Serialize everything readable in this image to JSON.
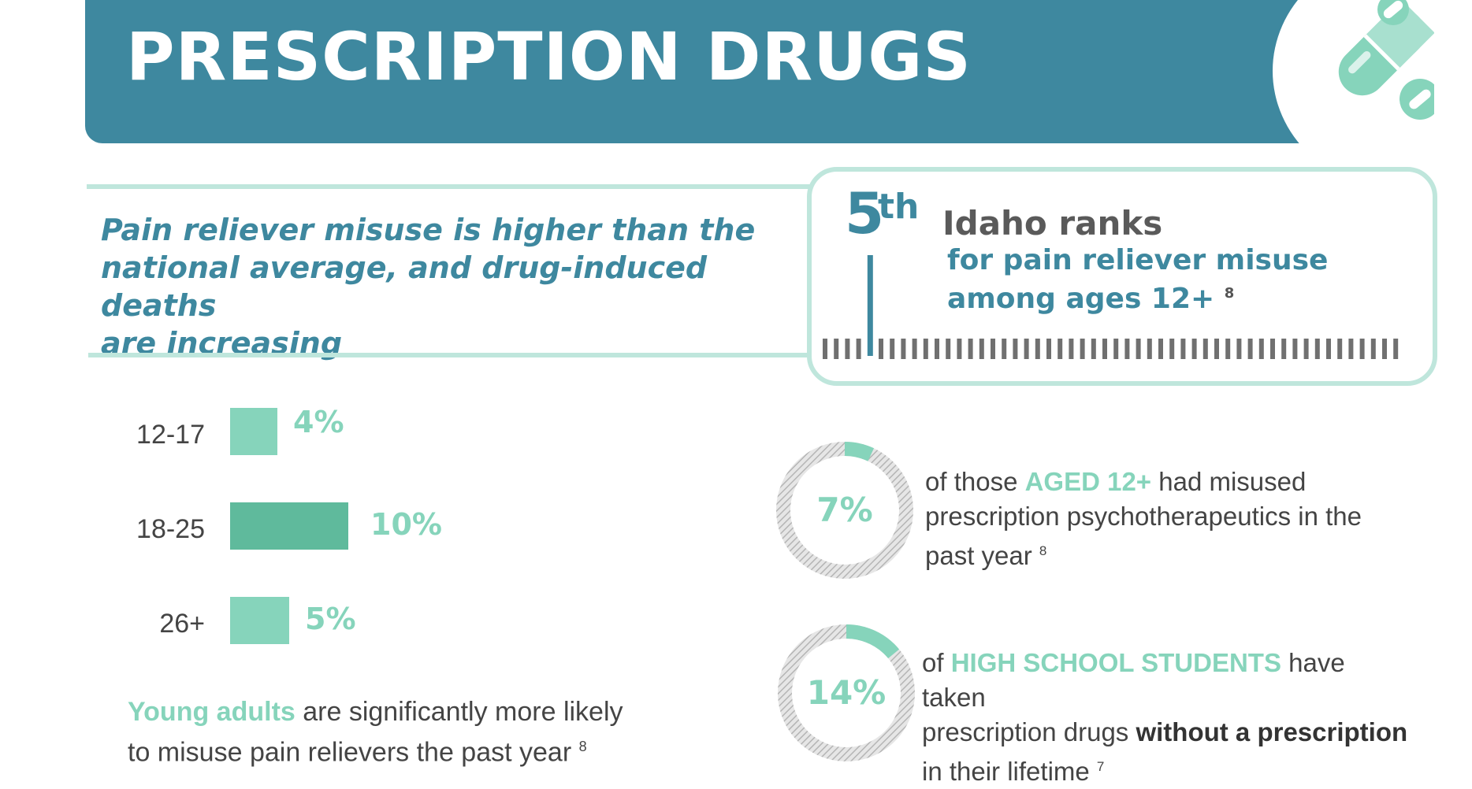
{
  "header": {
    "title": "PRESCRIPTION DRUGS",
    "icon": "pill-capsule-icon",
    "banner_color": "#3e889f",
    "icon_color": "#86d4bb"
  },
  "headline": {
    "lines": [
      "Pain reliever misuse is higher than the",
      "national average, and drug-induced deaths",
      "are increasing"
    ]
  },
  "rank_card": {
    "rank": "5",
    "suffix": "th",
    "title": "Idaho ranks",
    "desc_line1": "for pain reliever misuse",
    "desc_line2": "among ages 12+",
    "footnote": "8"
  },
  "chart_data": {
    "type": "bar",
    "orientation": "horizontal",
    "categories": [
      "12-17",
      "18-25",
      "26+"
    ],
    "values": [
      4,
      10,
      5
    ],
    "labels": [
      "4%",
      "10%",
      "5%"
    ],
    "highlight": "18-25",
    "colors": {
      "bar": "#86d4bb",
      "highlight": "#5fba9c"
    }
  },
  "bar_footnote": {
    "highlight": "Young adults",
    "text_line1": " are significantly more likely",
    "text_line2": "to misuse pain relievers the past year",
    "footnote": "8"
  },
  "stats": [
    {
      "value": 7,
      "label": "7%",
      "pre": "of those ",
      "highlight": "AGED 12+",
      "post1": " had misused",
      "line2": "prescription psychotherapeutics in the",
      "line3": "past year",
      "footnote": "8"
    },
    {
      "value": 14,
      "label": "14%",
      "pre": "of ",
      "highlight": "HIGH SCHOOL STUDENTS",
      "post1": " have taken",
      "line2_pre": "prescription drugs ",
      "line2_bold": "without a prescription",
      "line3": "in their lifetime",
      "footnote": "7"
    }
  ],
  "colors": {
    "accent_teal": "#3e889f",
    "accent_mint": "#86d4bb",
    "border_mint": "#bfe6dc"
  }
}
